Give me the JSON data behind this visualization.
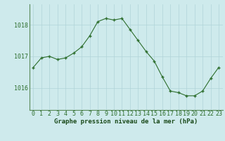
{
  "x": [
    0,
    1,
    2,
    3,
    4,
    5,
    6,
    7,
    8,
    9,
    10,
    11,
    12,
    13,
    14,
    15,
    16,
    17,
    18,
    19,
    20,
    21,
    22,
    23
  ],
  "y": [
    1016.65,
    1016.95,
    1017.0,
    1016.9,
    1016.95,
    1017.1,
    1017.3,
    1017.65,
    1018.1,
    1018.2,
    1018.15,
    1018.2,
    1017.85,
    1017.5,
    1017.15,
    1016.85,
    1016.35,
    1015.9,
    1015.85,
    1015.75,
    1015.75,
    1015.9,
    1016.3,
    1016.65
  ],
  "line_color": "#2d6e2d",
  "marker": "+",
  "marker_size": 3,
  "marker_linewidth": 1.0,
  "bg_color": "#ceeaec",
  "grid_color": "#b0d4d8",
  "border_color": "#5a8a5a",
  "xlabel": "Graphe pression niveau de la mer (hPa)",
  "xlabel_fontsize": 6.5,
  "xlabel_color": "#1a4a1a",
  "xlabel_bold": true,
  "tick_label_color": "#2d6e2d",
  "tick_label_fontsize": 6,
  "yticks": [
    1016,
    1017,
    1018
  ],
  "ylim": [
    1015.3,
    1018.65
  ],
  "xlim": [
    -0.5,
    23.5
  ],
  "xticks": [
    0,
    1,
    2,
    3,
    4,
    5,
    6,
    7,
    8,
    9,
    10,
    11,
    12,
    13,
    14,
    15,
    16,
    17,
    18,
    19,
    20,
    21,
    22,
    23
  ]
}
